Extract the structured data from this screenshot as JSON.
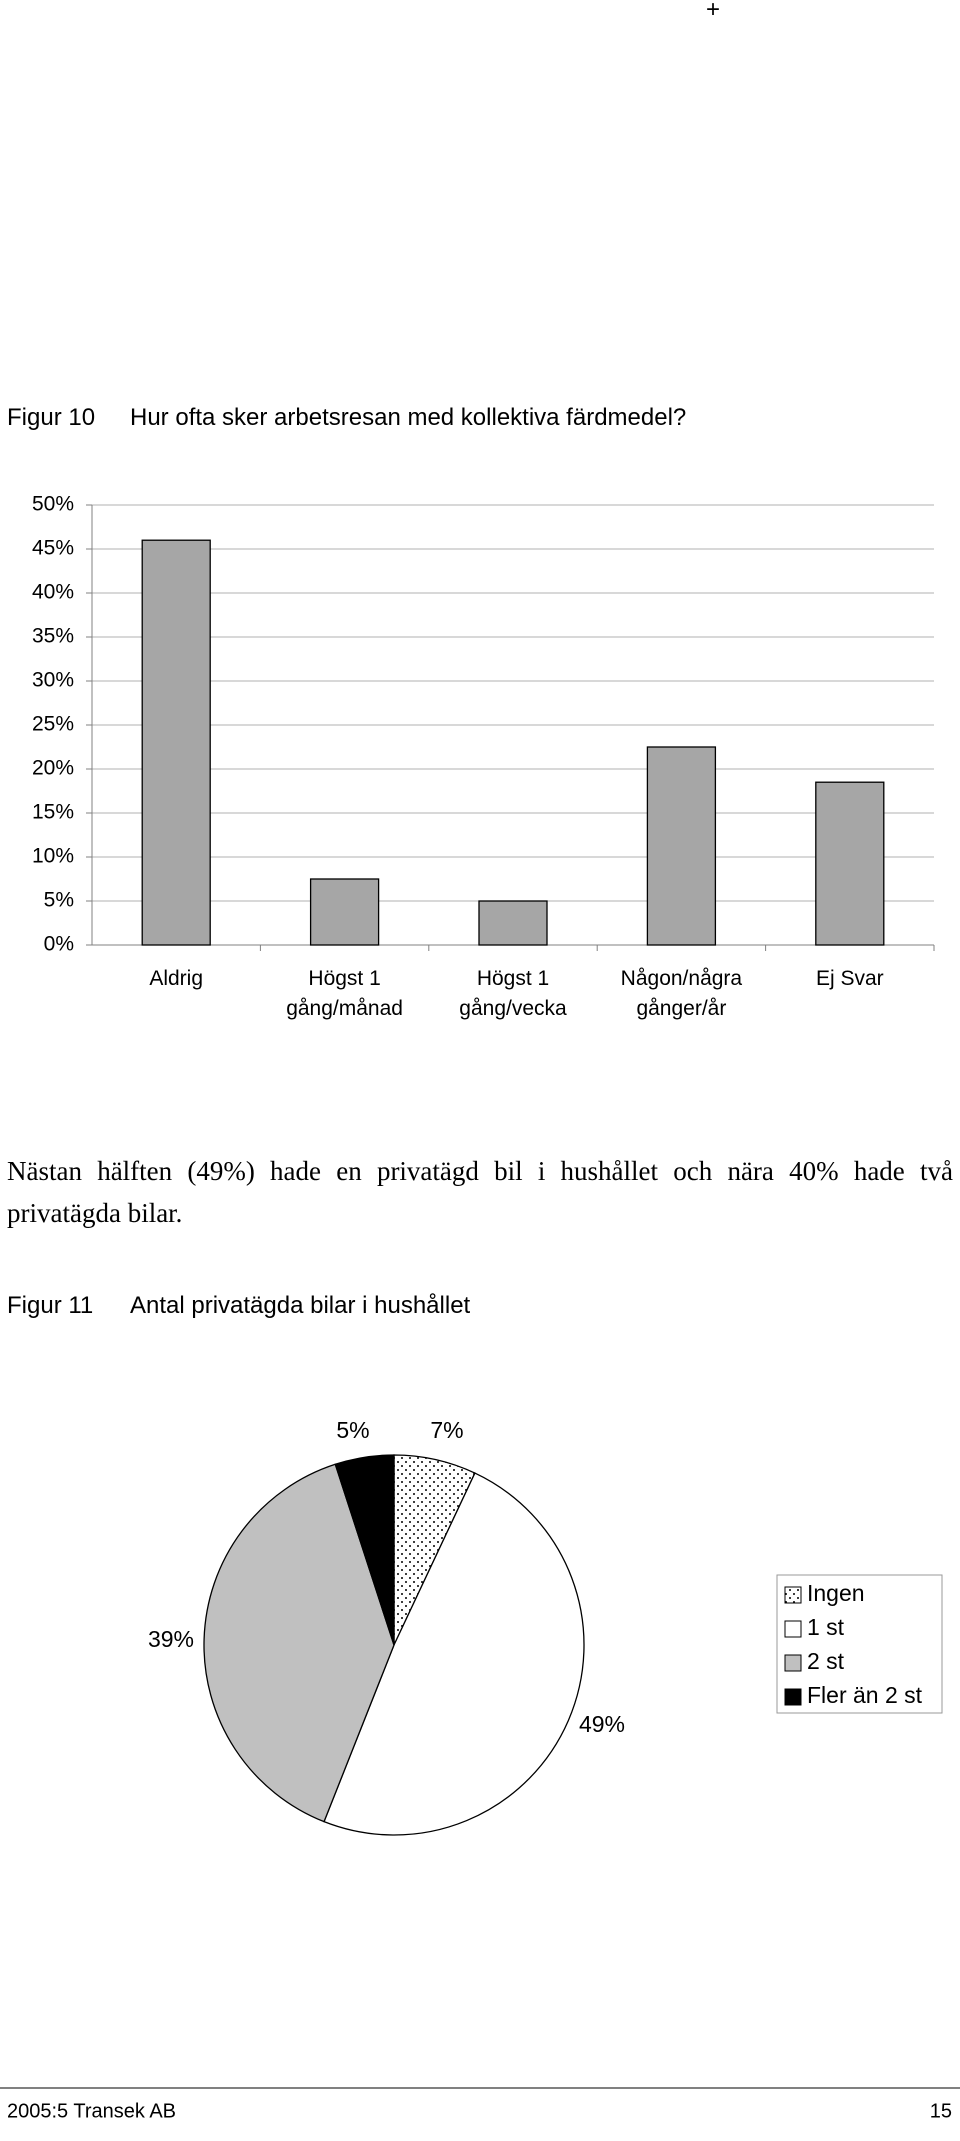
{
  "header_mark": "+",
  "figure_10": {
    "label": "Figur 10",
    "caption": "Hur ofta sker arbetsresan med kollektiva färdmedel?"
  },
  "chart_data": [
    {
      "type": "bar",
      "categories": [
        "Aldrig",
        "Högst 1 gång/månad",
        "Högst 1 gång/vecka",
        "Någon/några gånger/år",
        "Ej Svar"
      ],
      "values": [
        46,
        7.5,
        5,
        22.5,
        18.5
      ],
      "color": "#a6a6a6",
      "ylim": [
        0,
        50
      ],
      "yticks": [
        {
          "value": 0,
          "label": "0%"
        },
        {
          "value": 5,
          "label": "5%"
        },
        {
          "value": 10,
          "label": "10%"
        },
        {
          "value": 15,
          "label": "15%"
        },
        {
          "value": 20,
          "label": "20%"
        },
        {
          "value": 25,
          "label": "25%"
        },
        {
          "value": 30,
          "label": "30%"
        },
        {
          "value": 35,
          "label": "35%"
        },
        {
          "value": 40,
          "label": "40%"
        },
        {
          "value": 45,
          "label": "45%"
        },
        {
          "value": 50,
          "label": "50%"
        }
      ],
      "grid": true
    },
    {
      "type": "pie",
      "categories": [
        "Ingen",
        "1 st",
        "2 st",
        "Fler än 2 st"
      ],
      "values": [
        7,
        49,
        39,
        5
      ],
      "value_labels": [
        "7%",
        "49%",
        "39%",
        "5%"
      ],
      "colors": [
        "dotted",
        "#ffffff",
        "#c0c0c0",
        "#000000"
      ],
      "legend": "right"
    }
  ],
  "paragraph": "Nästan hälften (49%) hade en privatägd bil i hushållet och nära 40% hade två privatägda bilar.",
  "figure_11": {
    "label": "Figur 11",
    "caption": "Antal privatägda bilar i hushållet"
  },
  "footer": {
    "left": "2005:5 Transek AB",
    "page": "15"
  }
}
